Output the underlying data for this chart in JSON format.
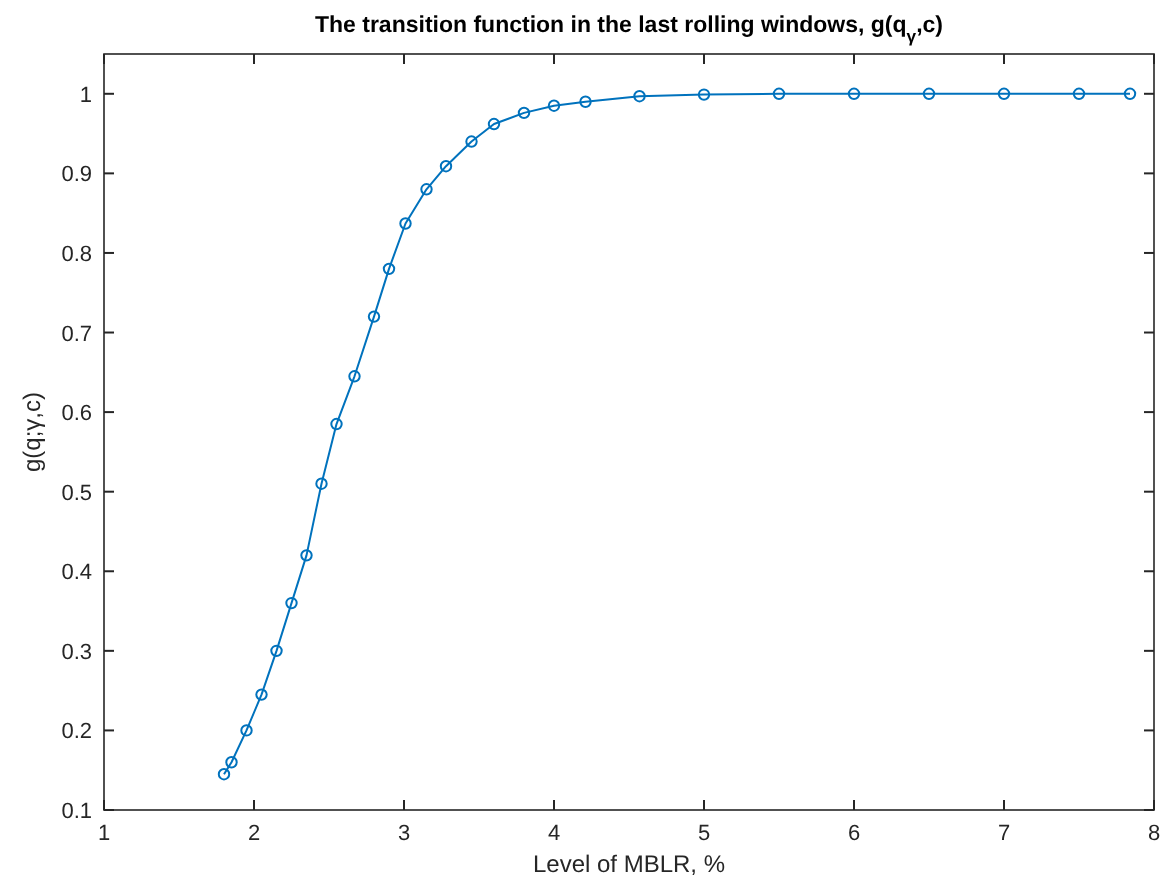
{
  "chart_data": {
    "type": "line",
    "title": "The transition function in the last rolling windows, g(q$_{γ}$,c)",
    "xlabel": "Level of MBLR, %",
    "ylabel": "g(q;γ,c)",
    "x": [
      1.8,
      1.85,
      1.95,
      2.05,
      2.15,
      2.25,
      2.35,
      2.45,
      2.55,
      2.67,
      2.8,
      2.9,
      3.01,
      3.15,
      3.28,
      3.45,
      3.6,
      3.8,
      4.0,
      4.21,
      4.57,
      5.0,
      5.5,
      6,
      6.5,
      7,
      7.5,
      7.84
    ],
    "series": [
      {
        "color": "#0072bd",
        "values": [
          0.145,
          0.16,
          0.2,
          0.245,
          0.3,
          0.36,
          0.42,
          0.51,
          0.585,
          0.645,
          0.72,
          0.78,
          0.837,
          0.88,
          0.909,
          0.94,
          0.962,
          0.976,
          0.985,
          0.99,
          0.997,
          0.999,
          1,
          1,
          1,
          1,
          1,
          1
        ]
      }
    ],
    "xlim": [
      1,
      8
    ],
    "xticks": [
      1,
      2,
      3,
      4,
      5,
      6,
      7,
      8
    ],
    "ylim": [
      0.1,
      1.05
    ],
    "yticks": [
      0.1,
      0.2,
      0.3,
      0.4,
      0.5,
      0.6,
      0.7,
      0.8,
      0.9,
      1
    ],
    "grid": false,
    "marker": "circle",
    "line_style": "solid"
  }
}
